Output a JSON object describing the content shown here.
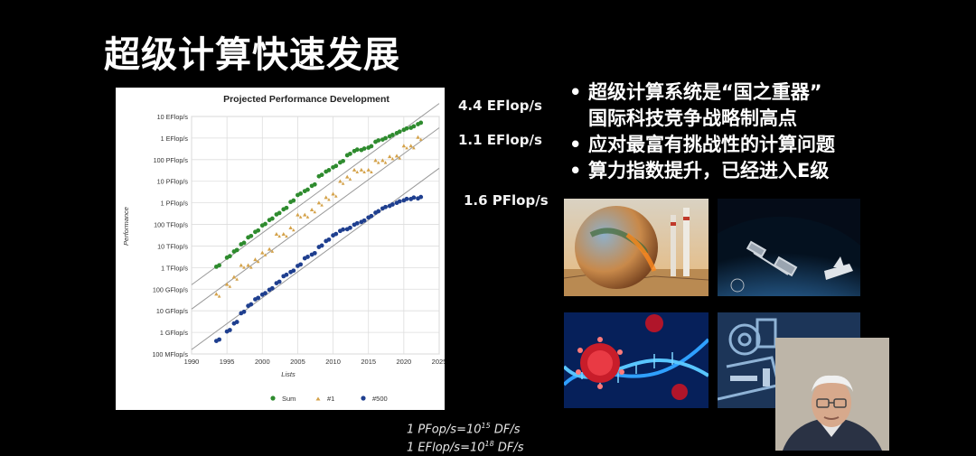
{
  "slide": {
    "title": "超级计算快速发展",
    "annotations": {
      "sum": "4.4 EFlop/s",
      "n1": "1.1 EFlop/s",
      "n500": "1.6 PFlop/s"
    },
    "bullets": [
      "超级计算系统是“国之重器”",
      "国际科技竞争战略制高点",
      "应对最富有挑战性的计算问题",
      "算力指数提升，已经进入E级"
    ],
    "bullet_symbol": "•",
    "formula": {
      "line1_prefix": "1 PFop/s=10",
      "line1_exp": "15",
      "line1_suffix": " DF/s",
      "line2_prefix": "1 EFlop/s=10",
      "line2_exp": "18",
      "line2_suffix": " DF/s"
    },
    "images": [
      "earth-climate-image",
      "space-station-image",
      "virus-dna-image",
      "machinery-image",
      "presenter-webcam"
    ]
  },
  "chart_data": {
    "type": "scatter",
    "title": "Projected Performance Development",
    "xlabel": "Lists",
    "ylabel": "Performance",
    "y_scale": "log",
    "xlim": [
      1990,
      2025
    ],
    "x_ticks": [
      "1990",
      "1995",
      "2000",
      "2005",
      "2010",
      "2015",
      "2020",
      "2025"
    ],
    "y_ticks": [
      "100 MFlop/s",
      "1 GFlop/s",
      "10 GFlop/s",
      "100 GFlop/s",
      "1 TFlop/s",
      "10 TFlop/s",
      "100 TFlop/s",
      "1 PFlop/s",
      "10 PFlop/s",
      "100 PFlop/s",
      "1 EFlop/s",
      "10 EFlop/s"
    ],
    "legend_position": "bottom",
    "series": [
      {
        "name": "Sum",
        "color": "#2e8b2e",
        "marker": "circle",
        "x": [
          1993.5,
          1995,
          1996,
          1997,
          1998,
          1999,
          2000,
          2001,
          2002,
          2003,
          2004,
          2005,
          2006,
          2007,
          2008,
          2009,
          2010,
          2011,
          2012,
          2013,
          2014,
          2015,
          2016,
          2017,
          2018,
          2019,
          2020,
          2021,
          2022
        ],
        "y": [
          1100000000000.0,
          2900000000000.0,
          5600000000000.0,
          12000000000000.0,
          25000000000000.0,
          45000000000000.0,
          90000000000000.0,
          160000000000000.0,
          290000000000000.0,
          500000000000000.0,
          1100000000000000.0,
          2300000000000000.0,
          3500000000000000.0,
          6100000000000000.0,
          1.7e+16,
          2.8e+16,
          4.4e+16,
          7.4e+16,
          1.6e+17,
          2.5e+17,
          2.8e+17,
          3.6e+17,
          6.7e+17,
          8.5e+17,
          1.2e+18,
          1.7e+18,
          2.4e+18,
          3e+18,
          4.4e+18
        ]
      },
      {
        "name": "#1",
        "color": "#d4a24a",
        "marker": "triangle",
        "x": [
          1993.5,
          1995,
          1996,
          1997,
          1998,
          1999,
          2000,
          2001,
          2002,
          2003,
          2004,
          2005,
          2006,
          2007,
          2008,
          2009,
          2010,
          2011,
          2012,
          2013,
          2014,
          2015,
          2016,
          2017,
          2018,
          2019,
          2020,
          2021,
          2022
        ],
        "y": [
          60000000000.0,
          170000000000.0,
          370000000000.0,
          1300000000000.0,
          1300000000000.0,
          2400000000000.0,
          4900000000000.0,
          7200000000000.0,
          36000000000000.0,
          36000000000000.0,
          70000000000000.0,
          280000000000000.0,
          280000000000000.0,
          480000000000000.0,
          1000000000000000.0,
          1800000000000000.0,
          2600000000000000.0,
          1e+16,
          1.6e+16,
          3.4e+16,
          3.4e+16,
          3.4e+16,
          9.3e+16,
          9.3e+16,
          1.4e+17,
          1.5e+17,
          4.4e+17,
          4.4e+17,
          1.1e+18
        ]
      },
      {
        "name": "#500",
        "color": "#1f3f8f",
        "marker": "circle",
        "x": [
          1993.5,
          1995,
          1996,
          1997,
          1998,
          1999,
          2000,
          2001,
          2002,
          2003,
          2004,
          2005,
          2006,
          2007,
          2008,
          2009,
          2010,
          2011,
          2012,
          2013,
          2014,
          2015,
          2016,
          2017,
          2018,
          2019,
          2020,
          2021,
          2022
        ],
        "y": [
          400000000.0,
          1100000000.0,
          2600000000.0,
          7700000000.0,
          17000000000.0,
          34000000000.0,
          56000000000.0,
          94000000000.0,
          190000000000.0,
          400000000000.0,
          620000000000.0,
          1200000000000.0,
          2700000000000.0,
          4000000000000.0,
          9000000000000.0,
          17000000000000.0,
          31000000000000.0,
          50000000000000.0,
          60000000000000.0,
          97000000000000.0,
          130000000000000.0,
          210000000000000.0,
          350000000000000.0,
          550000000000000.0,
          720000000000000.0,
          1000000000000000.0,
          1300000000000000.0,
          1500000000000000.0,
          1600000000000000.0
        ]
      }
    ]
  }
}
